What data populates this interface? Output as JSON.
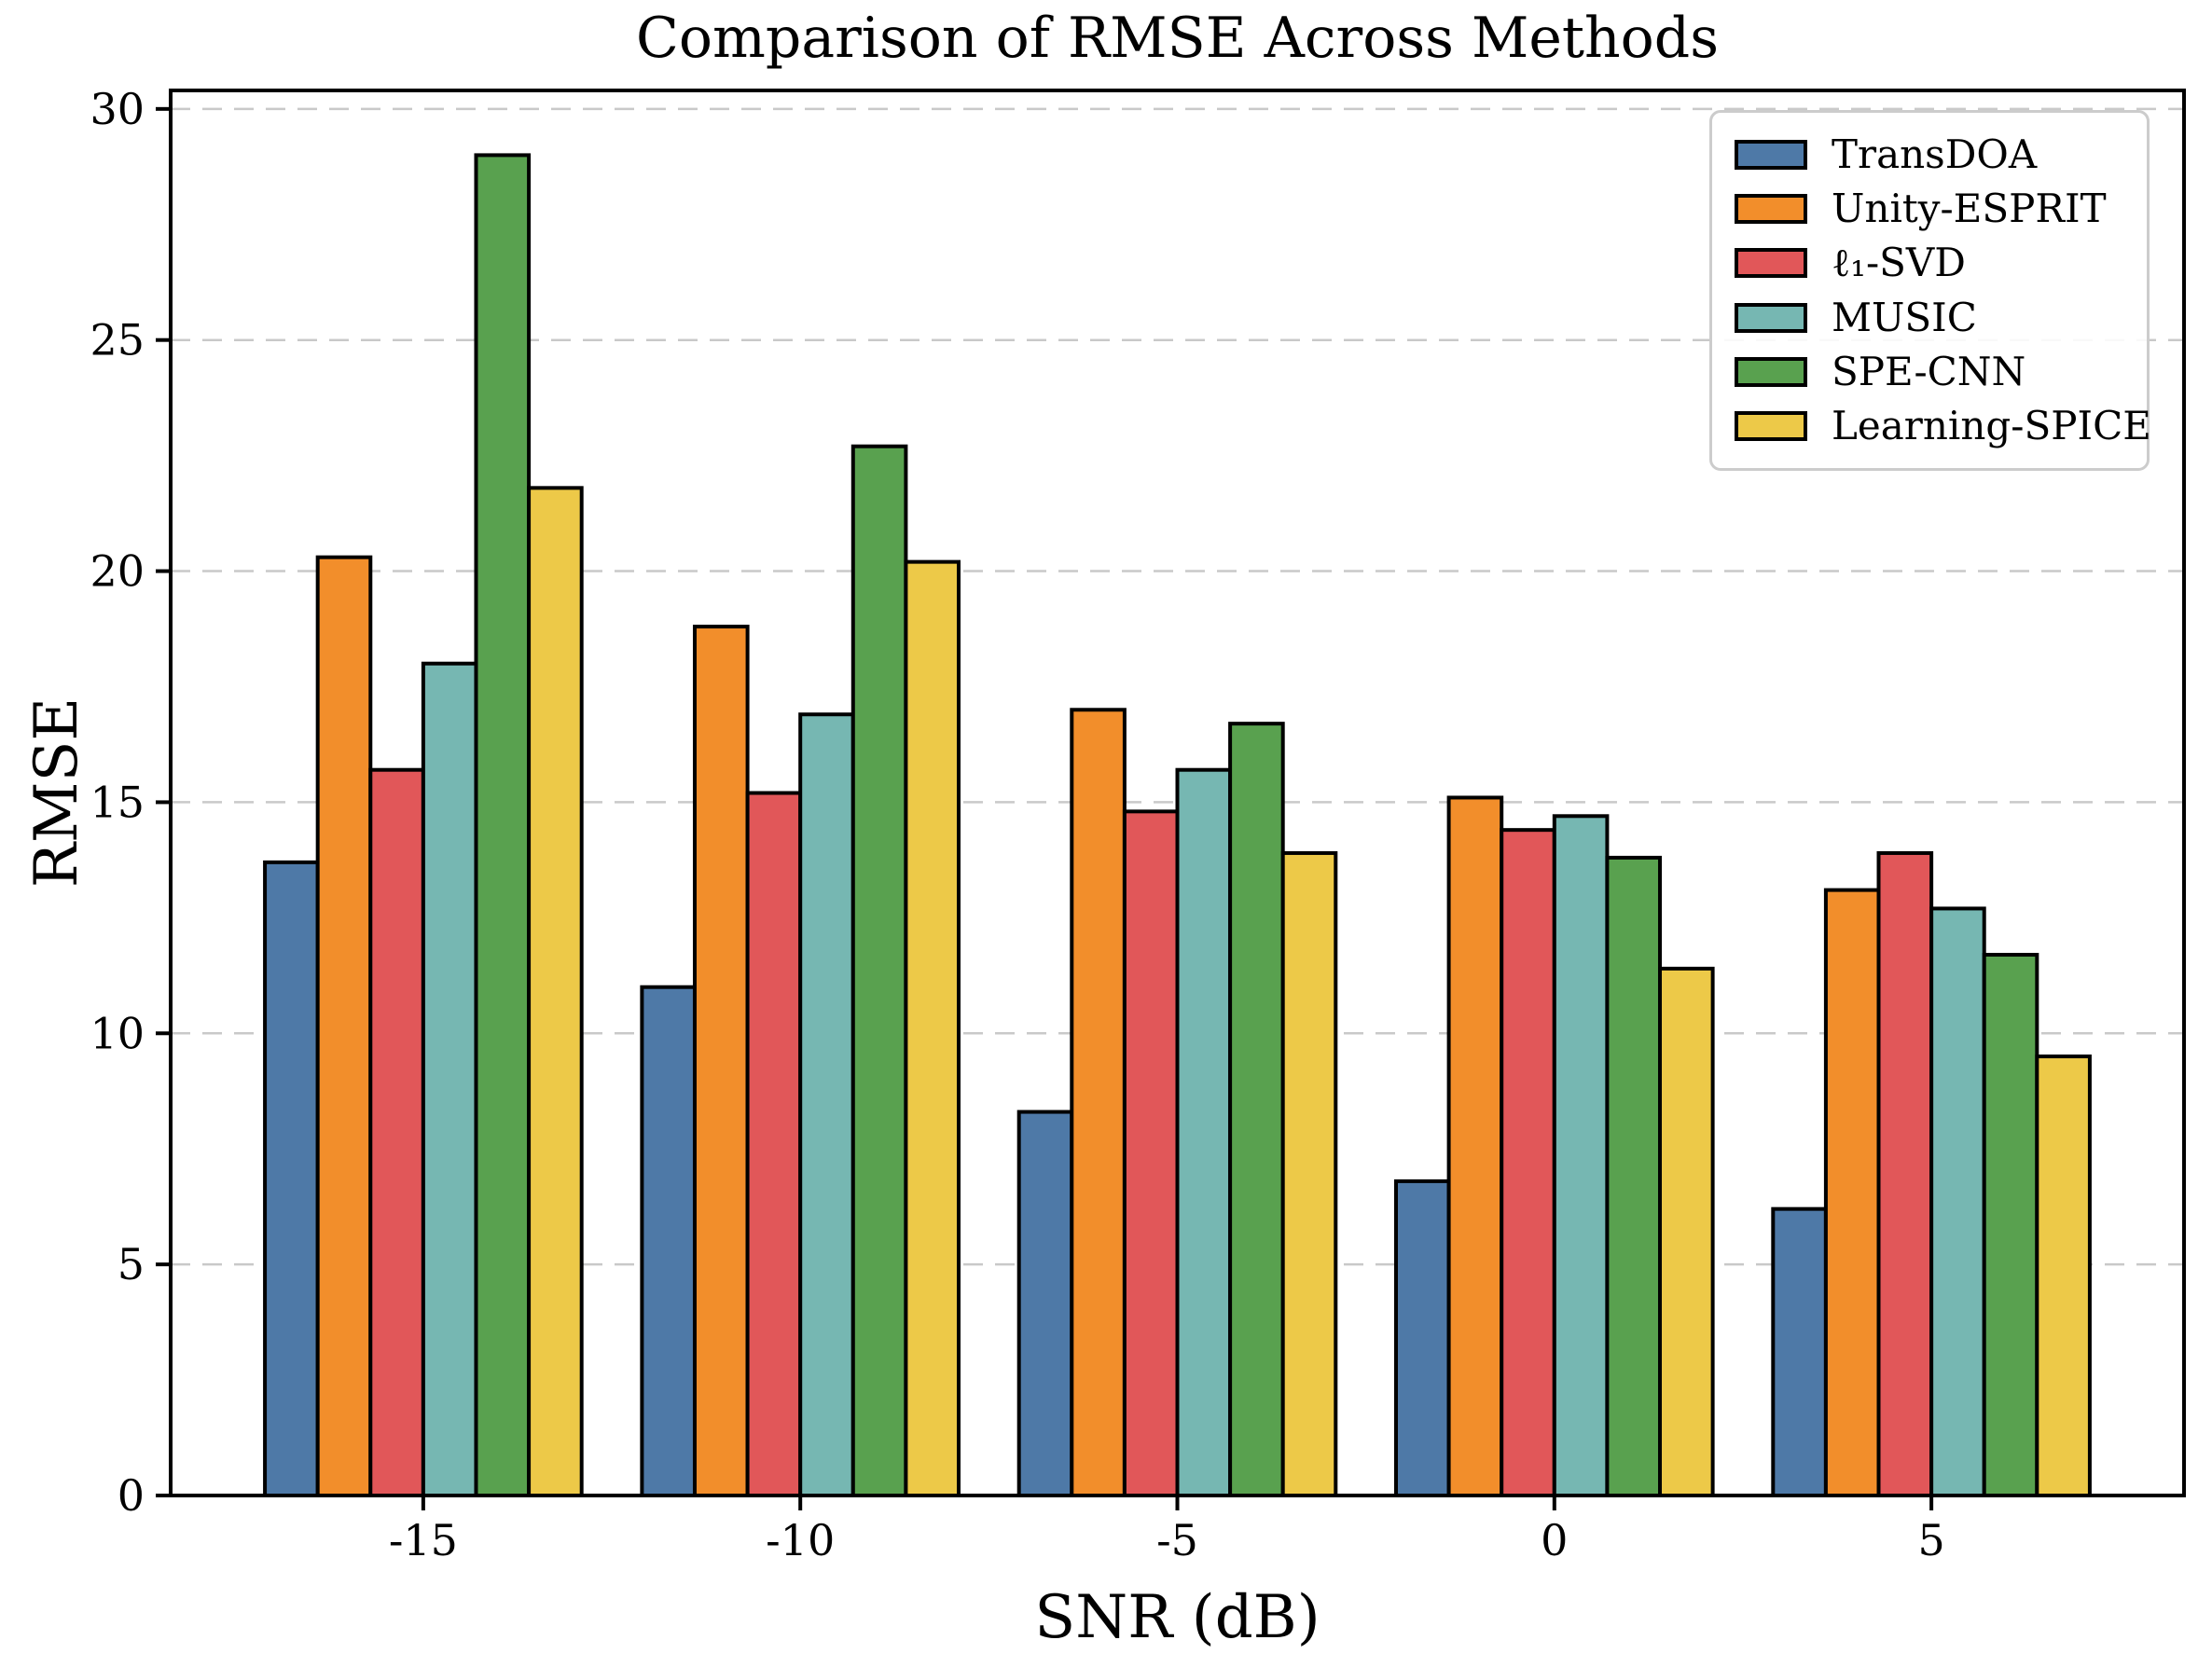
{
  "chart_data": {
    "type": "bar",
    "title": "Comparison of RMSE Across Methods",
    "xlabel": "SNR (dB)",
    "ylabel": "RMSE",
    "categories": [
      "-15",
      "-10",
      "-5",
      "0",
      "5"
    ],
    "series": [
      {
        "name": "TransDOA",
        "color": "#4E79A7",
        "values": [
          13.7,
          11.0,
          8.3,
          6.8,
          6.2
        ]
      },
      {
        "name": "Unity-ESPRIT",
        "color": "#F28E2B",
        "values": [
          20.3,
          18.8,
          17.0,
          15.1,
          13.1
        ]
      },
      {
        "name": "ℓ₁-SVD",
        "color": "#E15759",
        "values": [
          15.7,
          15.2,
          14.8,
          14.4,
          13.9
        ]
      },
      {
        "name": "MUSIC",
        "color": "#76B7B2",
        "values": [
          18.0,
          16.9,
          15.7,
          14.7,
          12.7
        ]
      },
      {
        "name": "SPE-CNN",
        "color": "#59A14F",
        "values": [
          29.0,
          22.7,
          16.7,
          13.8,
          11.7
        ]
      },
      {
        "name": "Learning-SPICE",
        "color": "#EDC948",
        "values": [
          21.8,
          20.2,
          13.9,
          11.4,
          9.5
        ]
      }
    ],
    "ylim": [
      0,
      30.4
    ],
    "yticks": [
      0,
      5,
      10,
      15,
      20,
      25,
      30
    ],
    "grid": {
      "axis": "y",
      "linestyle": "dashed",
      "color": "#c9c9c9"
    },
    "legend_position": "upper right",
    "bar_edge_color": "#000000",
    "axis_color": "#000000",
    "background": "#ffffff"
  }
}
